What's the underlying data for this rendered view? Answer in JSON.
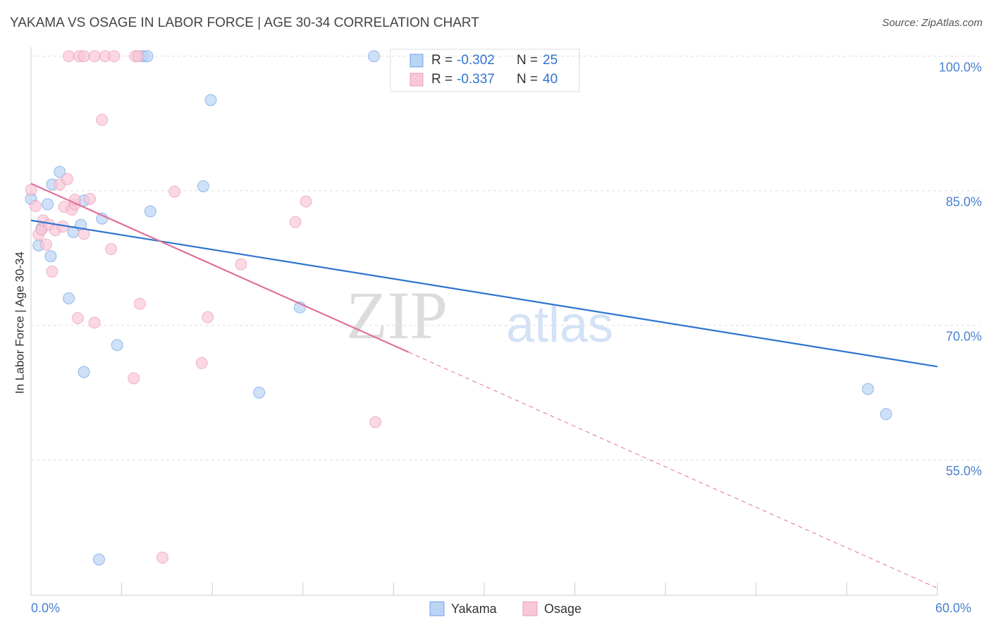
{
  "chart_data": {
    "type": "scatter",
    "title": "YAKAMA VS OSAGE IN LABOR FORCE | AGE 30-34 CORRELATION CHART",
    "source": "Source: ZipAtlas.com",
    "y_label": "In Labor Force | Age 30-34",
    "watermark": [
      "ZIP",
      "atlas"
    ],
    "r_label": "R =",
    "n_label": "N =",
    "xlim": [
      0,
      60
    ],
    "ylim": [
      39.9,
      101
    ],
    "xticks": [
      {
        "value": 0,
        "label": "0.0%"
      },
      {
        "value": 60,
        "label": "60.0%"
      }
    ],
    "yticks": [
      {
        "value": 55,
        "label": "55.0%"
      },
      {
        "value": 70,
        "label": "70.0%"
      },
      {
        "value": 85,
        "label": "85.0%"
      },
      {
        "value": 100,
        "label": "100.0%"
      }
    ],
    "grid": true,
    "series": [
      {
        "name": "Yakama",
        "color": "#2f74d0",
        "fill": "#b9d4f5",
        "r": -0.302,
        "n": 25,
        "x": [
          0,
          0.5,
          1.9,
          1.4,
          1.1,
          3.5,
          0.7,
          1.3,
          2.8,
          3.3,
          4.7,
          7.9,
          11.4,
          11.9,
          7.4,
          7.7,
          22.7,
          2.5,
          5.7,
          3.5,
          15.1,
          17.8,
          55.4,
          56.6,
          4.5
        ],
        "values": [
          84.1,
          78.9,
          87.1,
          85.7,
          83.5,
          83.9,
          80.8,
          77.7,
          80.4,
          81.2,
          81.9,
          82.7,
          85.5,
          95.1,
          100,
          100,
          100,
          73.0,
          67.8,
          64.8,
          62.5,
          72.0,
          62.9,
          60.1,
          43.9
        ],
        "trend": {
          "x": [
            0,
            60
          ],
          "y": [
            81.7,
            65.4
          ]
        }
      },
      {
        "name": "Osage",
        "color": "#e0709a",
        "fill": "#f9c8d7",
        "r": -0.337,
        "n": 40,
        "x": [
          0,
          0.3,
          0.5,
          0.7,
          0.8,
          1.0,
          1.2,
          1.4,
          1.6,
          1.9,
          2.4,
          2.1,
          2.2,
          2.7,
          2.9,
          3.5,
          3.9,
          2.5,
          3.2,
          3.5,
          4.2,
          4.9,
          5.5,
          6.9,
          7.1,
          4.7,
          5.3,
          7.2,
          3.1,
          4.2,
          6.8,
          9.5,
          11.7,
          11.3,
          13.9,
          17.5,
          18.2,
          22.8,
          8.7,
          2.9
        ],
        "values": [
          85.1,
          83.3,
          80.1,
          80.7,
          81.7,
          79.0,
          81.2,
          76.0,
          80.6,
          85.7,
          86.3,
          81.0,
          83.2,
          82.9,
          83.5,
          80.2,
          84.1,
          100,
          100,
          100,
          100,
          100,
          100,
          100,
          100,
          92.9,
          78.5,
          72.4,
          70.8,
          70.3,
          64.1,
          84.9,
          70.9,
          65.8,
          76.8,
          81.5,
          83.8,
          59.2,
          44.1,
          84.0
        ],
        "trend": {
          "x": [
            0,
            25,
            60
          ],
          "y": [
            85.8,
            67.0,
            40.7
          ]
        }
      }
    ]
  }
}
